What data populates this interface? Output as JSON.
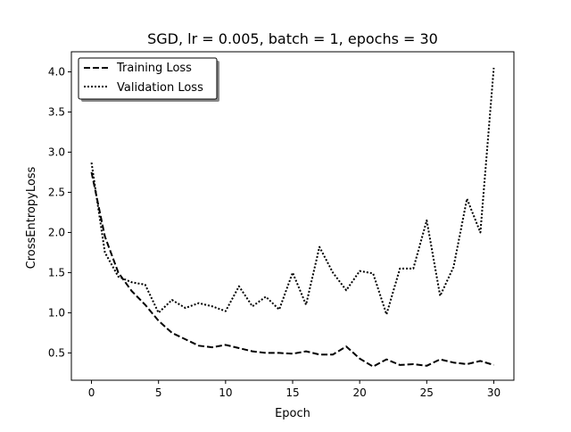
{
  "chart_data": {
    "type": "line",
    "title": "SGD, lr = 0.005, batch = 1, epochs = 30",
    "xlabel": "Epoch",
    "ylabel": "CrossEntropyLoss",
    "xlim": [
      -1.5,
      31.5
    ],
    "ylim": [
      0.16,
      4.25
    ],
    "x_ticks": [
      0,
      5,
      10,
      15,
      20,
      25,
      30
    ],
    "x_tick_labels": [
      "0",
      "5",
      "10",
      "15",
      "20",
      "25",
      "30"
    ],
    "y_ticks": [
      0.5,
      1.0,
      1.5,
      2.0,
      2.5,
      3.0,
      3.5,
      4.0
    ],
    "y_tick_labels": [
      "0.5",
      "1.0",
      "1.5",
      "2.0",
      "2.5",
      "3.0",
      "3.5",
      "4.0"
    ],
    "grid": false,
    "legend_position": "top-left",
    "x": [
      0,
      1,
      2,
      3,
      4,
      5,
      6,
      7,
      8,
      9,
      10,
      11,
      12,
      13,
      14,
      15,
      16,
      17,
      18,
      19,
      20,
      21,
      22,
      23,
      24,
      25,
      26,
      27,
      28,
      29,
      30
    ],
    "series": [
      {
        "name": "Training Loss",
        "style": "dashed",
        "color": "#000000",
        "values": [
          2.75,
          1.95,
          1.5,
          1.27,
          1.1,
          0.9,
          0.75,
          0.67,
          0.59,
          0.57,
          0.6,
          0.56,
          0.52,
          0.5,
          0.5,
          0.49,
          0.52,
          0.48,
          0.48,
          0.58,
          0.43,
          0.33,
          0.42,
          0.35,
          0.36,
          0.34,
          0.42,
          0.38,
          0.36,
          0.4,
          0.35
        ]
      },
      {
        "name": "Validation Loss",
        "style": "dotted",
        "color": "#000000",
        "values": [
          2.87,
          1.75,
          1.45,
          1.38,
          1.35,
          1.0,
          1.16,
          1.06,
          1.12,
          1.08,
          1.02,
          1.33,
          1.08,
          1.2,
          1.04,
          1.5,
          1.1,
          1.82,
          1.5,
          1.28,
          1.52,
          1.49,
          0.98,
          1.55,
          1.55,
          2.15,
          1.21,
          1.57,
          2.42,
          2.0,
          4.05
        ]
      }
    ]
  }
}
